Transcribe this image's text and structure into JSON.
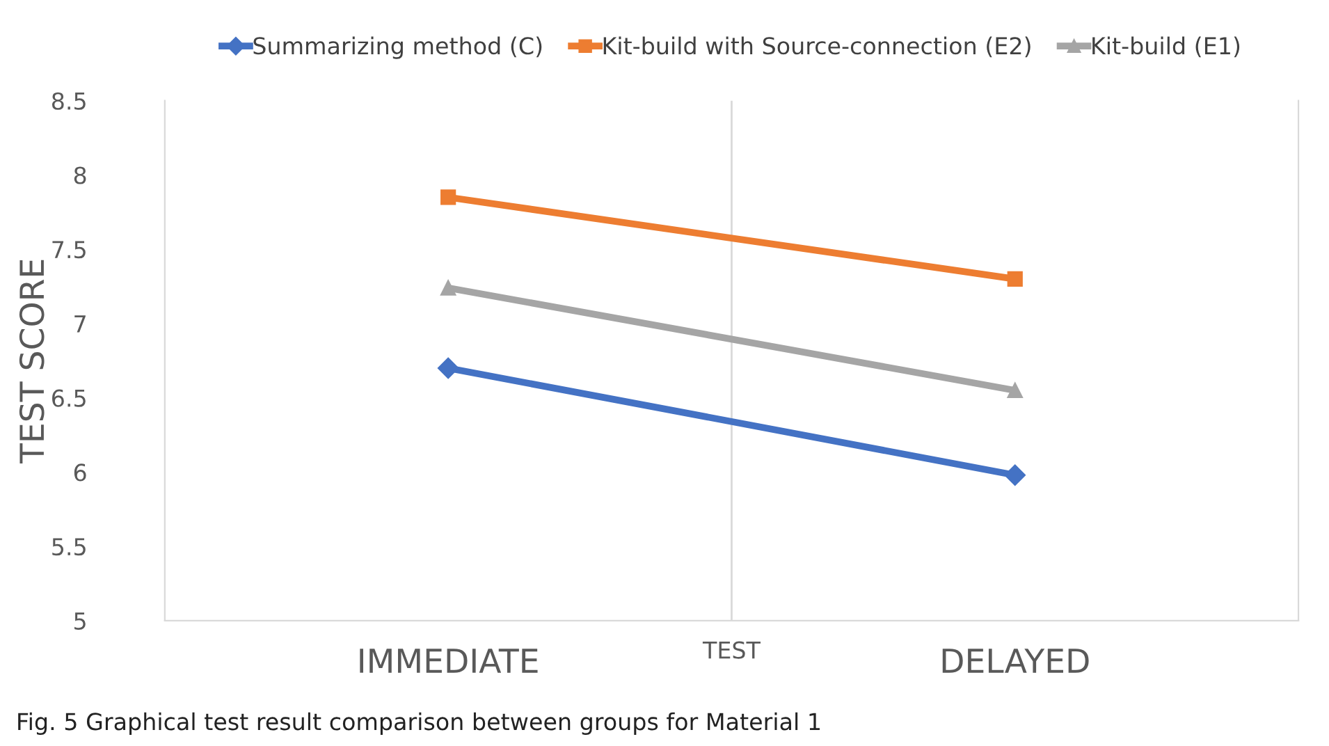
{
  "chart_data": {
    "type": "line",
    "xlabel": "TEST",
    "ylabel": "TEST SCORE",
    "categories": [
      "IMMEDIATE",
      "DELAYED"
    ],
    "series": [
      {
        "name": "Summarizing method (C)",
        "color": "#4472c4",
        "marker": "diamond",
        "values": [
          6.7,
          5.98
        ]
      },
      {
        "name": "Kit-build with Source-connection (E2)",
        "color": "#ed7d31",
        "marker": "square",
        "values": [
          7.85,
          7.3
        ]
      },
      {
        "name": "Kit-build (E1)",
        "color": "#a5a5a5",
        "marker": "triangle",
        "values": [
          7.24,
          6.55
        ]
      }
    ],
    "ylim": [
      5,
      8.5
    ],
    "yticks": [
      5,
      5.5,
      6,
      6.5,
      7,
      7.5,
      8,
      8.5
    ],
    "grid": "x",
    "legend": "top",
    "line_style": "solid",
    "annotations": [
      "Fig. 5 Graphical test result comparison between groups for Material 1"
    ]
  }
}
